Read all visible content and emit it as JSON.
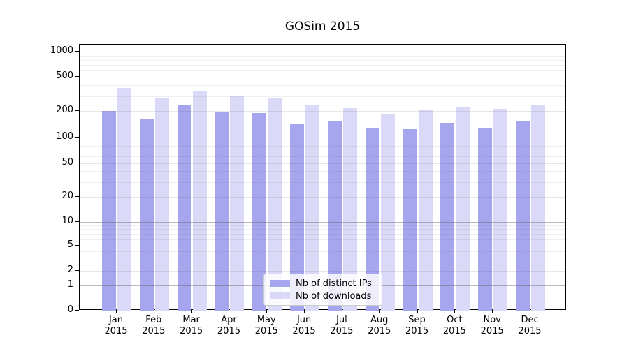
{
  "chart_data": {
    "type": "bar",
    "title": "GOSim 2015",
    "categories": [
      "Jan 2015",
      "Feb 2015",
      "Mar 2015",
      "Apr 2015",
      "May 2015",
      "Jun 2015",
      "Jul 2015",
      "Aug 2015",
      "Sep 2015",
      "Oct 2015",
      "Nov 2015",
      "Dec 2015"
    ],
    "series": [
      {
        "name": "Nb of distinct IPs",
        "color": "#a6a6ef",
        "values": [
          202,
          162,
          233,
          196,
          191,
          145,
          155,
          127,
          125,
          146,
          128,
          156
        ]
      },
      {
        "name": "Nb of downloads",
        "color": "#dadaf8",
        "values": [
          373,
          281,
          339,
          297,
          282,
          234,
          215,
          184,
          210,
          224,
          213,
          236
        ]
      }
    ],
    "yscale": "symlog",
    "ytick_values": [
      0,
      1,
      2,
      5,
      10,
      20,
      50,
      100,
      200,
      500,
      1000
    ],
    "ytick_labels": [
      "0",
      "1",
      "2",
      "5",
      "10",
      "20",
      "50",
      "100",
      "200",
      "500",
      "1000"
    ],
    "ylim": [
      0,
      1200
    ],
    "grid": true,
    "legend_position": "lower-center"
  },
  "legend": {
    "items": [
      {
        "label": "Nb of distinct IPs"
      },
      {
        "label": "Nb of downloads"
      }
    ]
  }
}
